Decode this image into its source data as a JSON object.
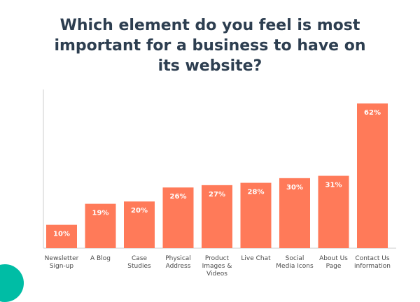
{
  "chart_data": {
    "type": "bar",
    "title": "Which element do you feel is most important for a business to have on its website?",
    "categories": [
      [
        "Newsletter",
        "Sign-up"
      ],
      [
        "A Blog"
      ],
      [
        "Case",
        "Studies"
      ],
      [
        "Physical",
        "Address"
      ],
      [
        "Product",
        "Images &",
        "Videos"
      ],
      [
        "Live Chat"
      ],
      [
        "Social",
        "Media Icons"
      ],
      [
        "About Us",
        "Page"
      ],
      [
        "Contact Us",
        "information"
      ]
    ],
    "values": [
      10,
      19,
      20,
      26,
      27,
      28,
      30,
      31,
      62
    ],
    "data_labels": [
      "10%",
      "19%",
      "20%",
      "26%",
      "27%",
      "28%",
      "30%",
      "31%",
      "62%"
    ],
    "xlabel": "",
    "ylabel": "",
    "ylim": [
      0,
      62
    ],
    "grid": false,
    "legend": "none"
  },
  "colors": {
    "bar": "#ff7a59",
    "title": "#2d3e50",
    "label_inside": "#ffffff",
    "label_outside": "#2d3e50",
    "axis": "#cccccc",
    "accent_circle": "#00bda5"
  }
}
